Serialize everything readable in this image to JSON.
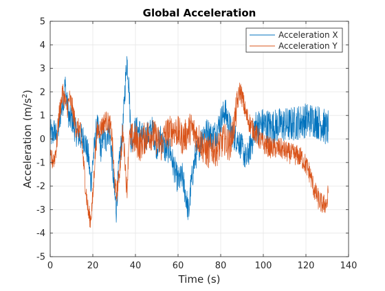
{
  "chart_data": {
    "type": "line",
    "title": "Global Acceleration",
    "xlabel": "Time (s)",
    "ylabel": "Acceleration (m/s²)",
    "ylabel_parts": {
      "prefix": "Acceleration (m/s",
      "sup": "2",
      "suffix": ")"
    },
    "xlim": [
      0,
      140
    ],
    "ylim": [
      -5,
      5
    ],
    "xticks": [
      "0",
      "20",
      "40",
      "60",
      "80",
      "100",
      "120",
      "140"
    ],
    "yticks": [
      "5",
      "4",
      "3",
      "2",
      "1",
      "0",
      "-1",
      "-2",
      "-3",
      "-4",
      "-5"
    ],
    "grid": true,
    "legend_position": "top-right",
    "legend": [
      "Acceleration X",
      "Acceleration Y"
    ],
    "sample_rate_hz": 10,
    "series": [
      {
        "name": "Acceleration X",
        "color": "#0072BD",
        "anchor_points": [
          [
            0,
            0.3
          ],
          [
            1,
            0.1
          ],
          [
            2,
            0.4
          ],
          [
            3,
            0.0
          ],
          [
            4,
            0.5
          ],
          [
            5,
            1.2
          ],
          [
            6,
            1.6
          ],
          [
            7,
            2.3
          ],
          [
            8,
            1.5
          ],
          [
            9,
            0.8
          ],
          [
            10,
            0.9
          ],
          [
            12,
            0.3
          ],
          [
            14,
            0.1
          ],
          [
            16,
            0.0
          ],
          [
            18,
            -0.8
          ],
          [
            19,
            -1.9
          ],
          [
            20,
            -1.0
          ],
          [
            21,
            -0.2
          ],
          [
            22,
            0.6
          ],
          [
            24,
            -0.5
          ],
          [
            25,
            0.3
          ],
          [
            26,
            -0.2
          ],
          [
            27,
            0.4
          ],
          [
            28,
            0.2
          ],
          [
            29,
            -0.8
          ],
          [
            30,
            -2.2
          ],
          [
            31,
            -3.0
          ],
          [
            32,
            -1.5
          ],
          [
            33,
            -0.5
          ],
          [
            34,
            0.2
          ],
          [
            35,
            2.0
          ],
          [
            36,
            3.4
          ],
          [
            37,
            2.2
          ],
          [
            38,
            -0.2
          ],
          [
            40,
            0.4
          ],
          [
            42,
            0.3
          ],
          [
            44,
            0.0
          ],
          [
            46,
            0.2
          ],
          [
            48,
            0.4
          ],
          [
            50,
            -0.3
          ],
          [
            52,
            0.1
          ],
          [
            54,
            -0.5
          ],
          [
            56,
            -0.4
          ],
          [
            58,
            -1.2
          ],
          [
            60,
            -1.8
          ],
          [
            62,
            -1.6
          ],
          [
            64,
            -2.6
          ],
          [
            65,
            -3.2
          ],
          [
            66,
            -2.0
          ],
          [
            68,
            -0.8
          ],
          [
            70,
            -0.3
          ],
          [
            72,
            0.3
          ],
          [
            74,
            0.3
          ],
          [
            76,
            0.1
          ],
          [
            78,
            0.3
          ],
          [
            80,
            0.8
          ],
          [
            82,
            1.2
          ],
          [
            84,
            0.6
          ],
          [
            86,
            0.1
          ],
          [
            88,
            0.0
          ],
          [
            90,
            -0.4
          ],
          [
            92,
            -0.9
          ],
          [
            94,
            -0.3
          ],
          [
            96,
            0.5
          ],
          [
            100,
            0.6
          ],
          [
            104,
            0.5
          ],
          [
            108,
            0.6
          ],
          [
            112,
            0.6
          ],
          [
            116,
            0.7
          ],
          [
            120,
            0.8
          ],
          [
            124,
            0.8
          ],
          [
            128,
            0.6
          ],
          [
            130,
            0.4
          ],
          [
            130.5,
            0.5
          ]
        ]
      },
      {
        "name": "Acceleration Y",
        "color": "#D95319",
        "anchor_points": [
          [
            0,
            -0.9
          ],
          [
            1,
            -0.9
          ],
          [
            2,
            -0.8
          ],
          [
            3,
            -0.3
          ],
          [
            4,
            0.9
          ],
          [
            5,
            1.5
          ],
          [
            6,
            2.0
          ],
          [
            7,
            1.6
          ],
          [
            8,
            1.3
          ],
          [
            9,
            1.7
          ],
          [
            10,
            1.5
          ],
          [
            12,
            0.5
          ],
          [
            14,
            0.4
          ],
          [
            15,
            -0.3
          ],
          [
            16,
            -1.4
          ],
          [
            17,
            -2.4
          ],
          [
            18,
            -3.2
          ],
          [
            19,
            -3.4
          ],
          [
            20,
            -2.5
          ],
          [
            21,
            -0.8
          ],
          [
            22,
            0.3
          ],
          [
            24,
            0.5
          ],
          [
            26,
            0.8
          ],
          [
            28,
            0.6
          ],
          [
            29,
            0.1
          ],
          [
            30,
            -1.5
          ],
          [
            31,
            -2.4
          ],
          [
            32,
            -1.8
          ],
          [
            33,
            -0.9
          ],
          [
            34,
            0.3
          ],
          [
            35,
            -0.7
          ],
          [
            36,
            -2.3
          ],
          [
            37,
            0.1
          ],
          [
            38,
            0.0
          ],
          [
            40,
            0.0
          ],
          [
            42,
            -0.3
          ],
          [
            44,
            0.0
          ],
          [
            46,
            0.2
          ],
          [
            48,
            0.2
          ],
          [
            50,
            0.0
          ],
          [
            52,
            -0.3
          ],
          [
            54,
            0.2
          ],
          [
            56,
            0.3
          ],
          [
            58,
            0.4
          ],
          [
            60,
            0.3
          ],
          [
            62,
            0.0
          ],
          [
            64,
            0.2
          ],
          [
            66,
            0.5
          ],
          [
            68,
            0.2
          ],
          [
            70,
            0.0
          ],
          [
            72,
            -0.4
          ],
          [
            74,
            -0.6
          ],
          [
            76,
            -0.4
          ],
          [
            78,
            -0.5
          ],
          [
            80,
            -0.2
          ],
          [
            82,
            0.0
          ],
          [
            84,
            -0.3
          ],
          [
            86,
            0.4
          ],
          [
            88,
            1.6
          ],
          [
            89,
            2.1
          ],
          [
            90,
            1.8
          ],
          [
            92,
            1.0
          ],
          [
            94,
            0.6
          ],
          [
            96,
            0.3
          ],
          [
            98,
            0.0
          ],
          [
            100,
            -0.2
          ],
          [
            104,
            -0.4
          ],
          [
            108,
            -0.4
          ],
          [
            112,
            -0.6
          ],
          [
            116,
            -0.7
          ],
          [
            118,
            -0.8
          ],
          [
            120,
            -1.1
          ],
          [
            122,
            -1.5
          ],
          [
            124,
            -2.2
          ],
          [
            126,
            -2.6
          ],
          [
            128,
            -2.8
          ],
          [
            130,
            -2.7
          ],
          [
            130.5,
            -2.2
          ]
        ]
      }
    ]
  }
}
